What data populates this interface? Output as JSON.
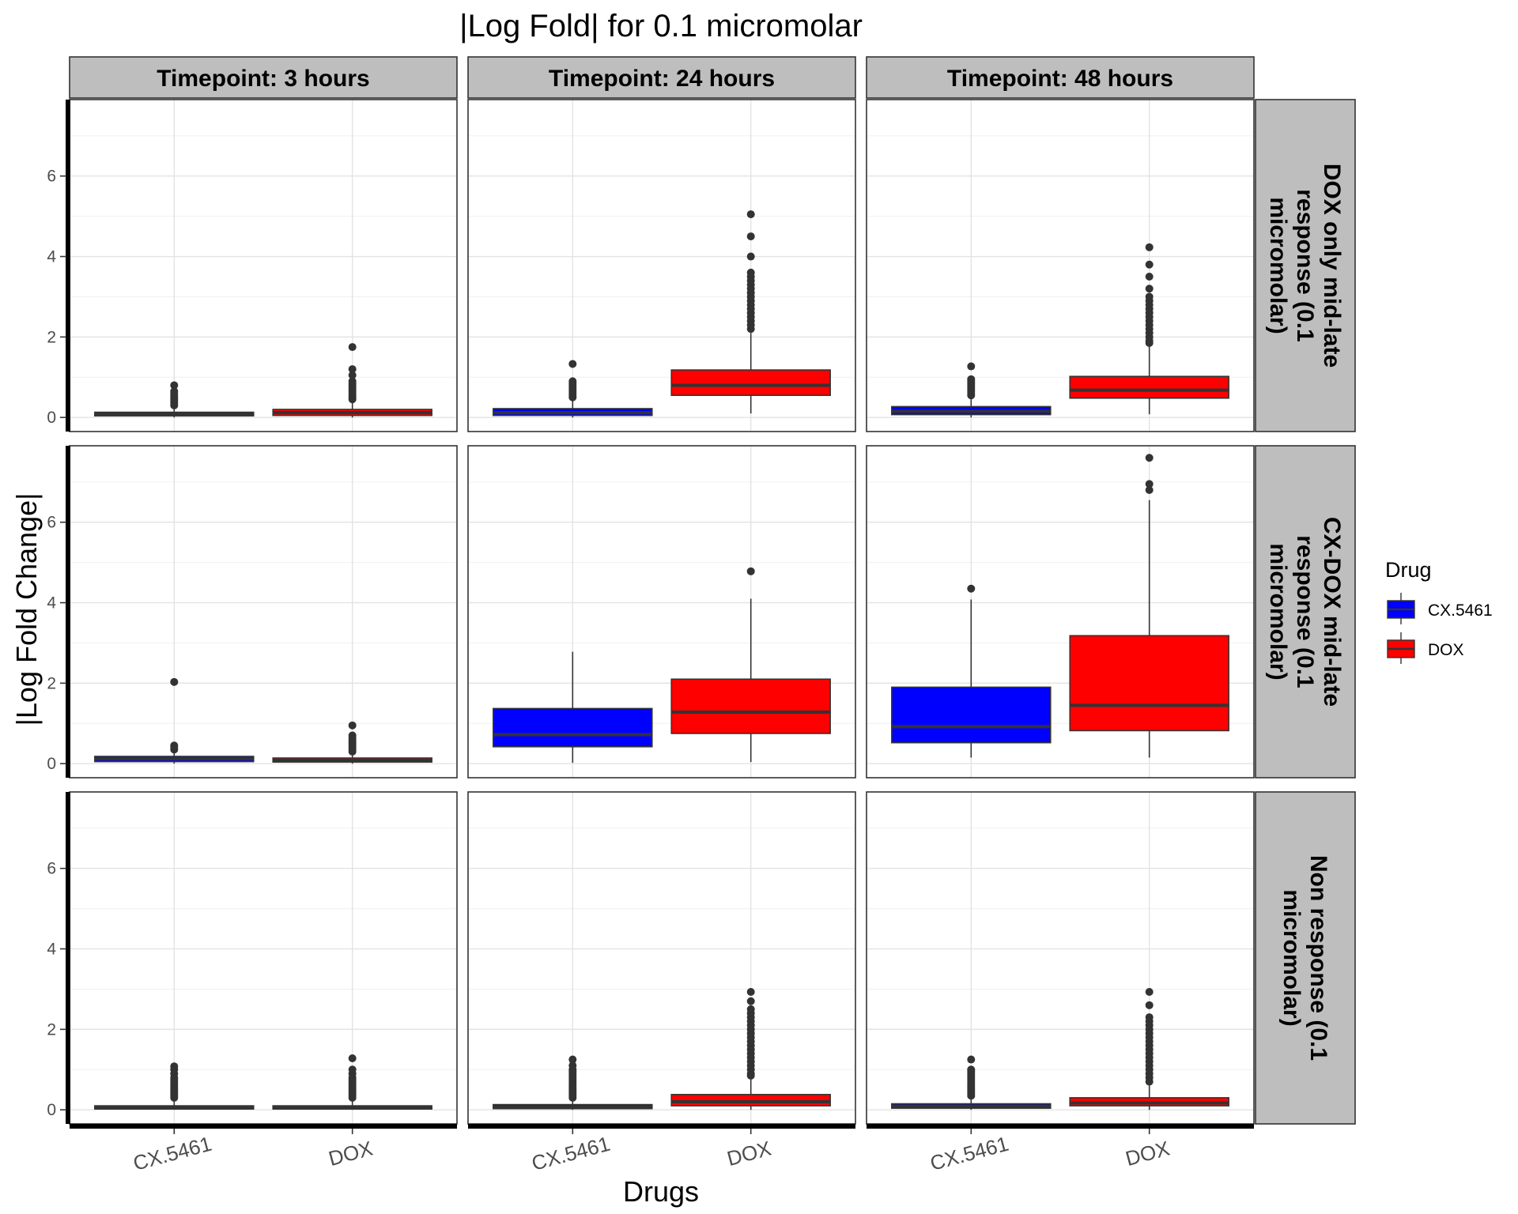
{
  "chart_data": {
    "type": "boxplot",
    "title": "|Log Fold| for 0.1 micromolar",
    "xlabel": "Drugs",
    "ylabel": "|Log Fold Change|",
    "categories": [
      "CX.5461",
      "DOX"
    ],
    "ylim": [
      -0.35,
      7.9
    ],
    "yticks": [
      0,
      2,
      4,
      6
    ],
    "grid": true,
    "legend": {
      "title": "Drug",
      "position": "right",
      "entries": [
        {
          "name": "CX.5461",
          "color": "#0000ff"
        },
        {
          "name": "DOX",
          "color": "#ff0000"
        }
      ]
    },
    "col_facets": [
      "Timepoint: 3 hours",
      "Timepoint: 24 hours",
      "Timepoint: 48 hours"
    ],
    "row_facets": [
      {
        "label": "DOX only mid-late response (0.1 micromolar)",
        "lines": [
          "DOX only mid-late",
          "response (0.1",
          "micromolar)"
        ]
      },
      {
        "label": "CX-DOX mid-late response (0.1 micromolar)",
        "lines": [
          "CX-DOX mid-late",
          "response (0.1",
          "micromolar)"
        ]
      },
      {
        "label": "Non response (0.1 micromolar)",
        "lines": [
          "Non response (0.1",
          "micromolar)"
        ]
      }
    ],
    "panels": [
      [
        {
          "boxes": [
            {
              "drug": "CX.5461",
              "whisker_low": 0.0,
              "q1": 0.04,
              "median": 0.08,
              "q3": 0.13,
              "whisker_high": 0.27,
              "outliers": [
                0.3,
                0.35,
                0.4,
                0.45,
                0.5,
                0.55,
                0.6,
                0.65,
                0.8
              ]
            },
            {
              "drug": "DOX",
              "whisker_low": 0.0,
              "q1": 0.05,
              "median": 0.12,
              "q3": 0.2,
              "whisker_high": 0.4,
              "outliers": [
                0.45,
                0.5,
                0.55,
                0.6,
                0.65,
                0.7,
                0.75,
                0.8,
                0.85,
                0.9,
                1.05,
                1.2,
                1.75
              ]
            }
          ]
        },
        {
          "boxes": [
            {
              "drug": "CX.5461",
              "whisker_low": 0.0,
              "q1": 0.05,
              "median": 0.12,
              "q3": 0.22,
              "whisker_high": 0.45,
              "outliers": [
                0.5,
                0.55,
                0.6,
                0.65,
                0.7,
                0.75,
                0.8,
                0.85,
                0.9,
                1.33
              ]
            },
            {
              "drug": "DOX",
              "whisker_low": 0.1,
              "q1": 0.55,
              "median": 0.8,
              "q3": 1.18,
              "whisker_high": 2.1,
              "outliers": [
                2.2,
                2.3,
                2.4,
                2.5,
                2.6,
                2.7,
                2.8,
                2.9,
                3.0,
                3.1,
                3.2,
                3.3,
                3.4,
                3.5,
                3.6,
                4.0,
                4.5,
                5.05
              ]
            }
          ]
        },
        {
          "boxes": [
            {
              "drug": "CX.5461",
              "whisker_low": 0.0,
              "q1": 0.07,
              "median": 0.15,
              "q3": 0.27,
              "whisker_high": 0.52,
              "outliers": [
                0.55,
                0.6,
                0.65,
                0.7,
                0.75,
                0.8,
                0.85,
                0.9,
                0.95,
                1.27
              ]
            },
            {
              "drug": "DOX",
              "whisker_low": 0.08,
              "q1": 0.48,
              "median": 0.68,
              "q3": 1.02,
              "whisker_high": 1.8,
              "outliers": [
                1.85,
                1.9,
                2.0,
                2.1,
                2.2,
                2.3,
                2.4,
                2.5,
                2.6,
                2.7,
                2.8,
                2.9,
                3.0,
                3.2,
                3.5,
                3.8,
                4.23
              ]
            }
          ]
        }
      ],
      [
        {
          "boxes": [
            {
              "drug": "CX.5461",
              "whisker_low": 0.0,
              "q1": 0.05,
              "median": 0.12,
              "q3": 0.18,
              "whisker_high": 0.3,
              "outliers": [
                0.35,
                0.4,
                0.45,
                2.03
              ]
            },
            {
              "drug": "DOX",
              "whisker_low": 0.0,
              "q1": 0.04,
              "median": 0.08,
              "q3": 0.14,
              "whisker_high": 0.27,
              "outliers": [
                0.3,
                0.35,
                0.4,
                0.45,
                0.5,
                0.55,
                0.6,
                0.65,
                0.7,
                0.95
              ]
            }
          ]
        },
        {
          "boxes": [
            {
              "drug": "CX.5461",
              "whisker_low": 0.02,
              "q1": 0.42,
              "median": 0.72,
              "q3": 1.37,
              "whisker_high": 2.78,
              "outliers": []
            },
            {
              "drug": "DOX",
              "whisker_low": 0.04,
              "q1": 0.75,
              "median": 1.28,
              "q3": 2.1,
              "whisker_high": 4.1,
              "outliers": [
                4.78
              ]
            }
          ]
        },
        {
          "boxes": [
            {
              "drug": "CX.5461",
              "whisker_low": 0.15,
              "q1": 0.52,
              "median": 0.92,
              "q3": 1.9,
              "whisker_high": 4.08,
              "outliers": [
                4.35
              ]
            },
            {
              "drug": "DOX",
              "whisker_low": 0.15,
              "q1": 0.82,
              "median": 1.45,
              "q3": 3.18,
              "whisker_high": 6.55,
              "outliers": [
                6.8,
                6.95,
                7.6
              ]
            }
          ]
        }
      ],
      [
        {
          "boxes": [
            {
              "drug": "CX.5461",
              "whisker_low": 0.0,
              "q1": 0.02,
              "median": 0.06,
              "q3": 0.1,
              "whisker_high": 0.25,
              "outliers": [
                0.3,
                0.35,
                0.4,
                0.45,
                0.5,
                0.55,
                0.6,
                0.65,
                0.7,
                0.75,
                0.8,
                0.9,
                1.0,
                1.08
              ]
            },
            {
              "drug": "DOX",
              "whisker_low": 0.0,
              "q1": 0.02,
              "median": 0.06,
              "q3": 0.1,
              "whisker_high": 0.25,
              "outliers": [
                0.3,
                0.35,
                0.4,
                0.45,
                0.5,
                0.55,
                0.6,
                0.65,
                0.7,
                0.75,
                0.8,
                0.9,
                1.0,
                1.28
              ]
            }
          ]
        },
        {
          "boxes": [
            {
              "drug": "CX.5461",
              "whisker_low": 0.0,
              "q1": 0.03,
              "median": 0.07,
              "q3": 0.13,
              "whisker_high": 0.27,
              "outliers": [
                0.3,
                0.35,
                0.4,
                0.45,
                0.5,
                0.55,
                0.6,
                0.65,
                0.7,
                0.75,
                0.8,
                0.85,
                0.9,
                0.95,
                1.0,
                1.1,
                1.25
              ]
            },
            {
              "drug": "DOX",
              "whisker_low": 0.0,
              "q1": 0.1,
              "median": 0.2,
              "q3": 0.38,
              "whisker_high": 0.8,
              "outliers": [
                0.85,
                0.9,
                1.0,
                1.1,
                1.2,
                1.3,
                1.4,
                1.5,
                1.6,
                1.7,
                1.8,
                1.9,
                2.0,
                2.1,
                2.2,
                2.3,
                2.4,
                2.5,
                2.7,
                2.93
              ]
            }
          ]
        },
        {
          "boxes": [
            {
              "drug": "CX.5461",
              "whisker_low": 0.0,
              "q1": 0.04,
              "median": 0.09,
              "q3": 0.15,
              "whisker_high": 0.3,
              "outliers": [
                0.35,
                0.4,
                0.45,
                0.5,
                0.55,
                0.6,
                0.65,
                0.7,
                0.75,
                0.8,
                0.85,
                0.9,
                0.95,
                1.0,
                1.25
              ]
            },
            {
              "drug": "DOX",
              "whisker_low": 0.0,
              "q1": 0.1,
              "median": 0.17,
              "q3": 0.3,
              "whisker_high": 0.65,
              "outliers": [
                0.7,
                0.8,
                0.9,
                1.0,
                1.1,
                1.2,
                1.3,
                1.4,
                1.5,
                1.6,
                1.7,
                1.8,
                1.9,
                2.0,
                2.1,
                2.2,
                2.3,
                2.6,
                2.93
              ]
            }
          ]
        }
      ]
    ]
  }
}
